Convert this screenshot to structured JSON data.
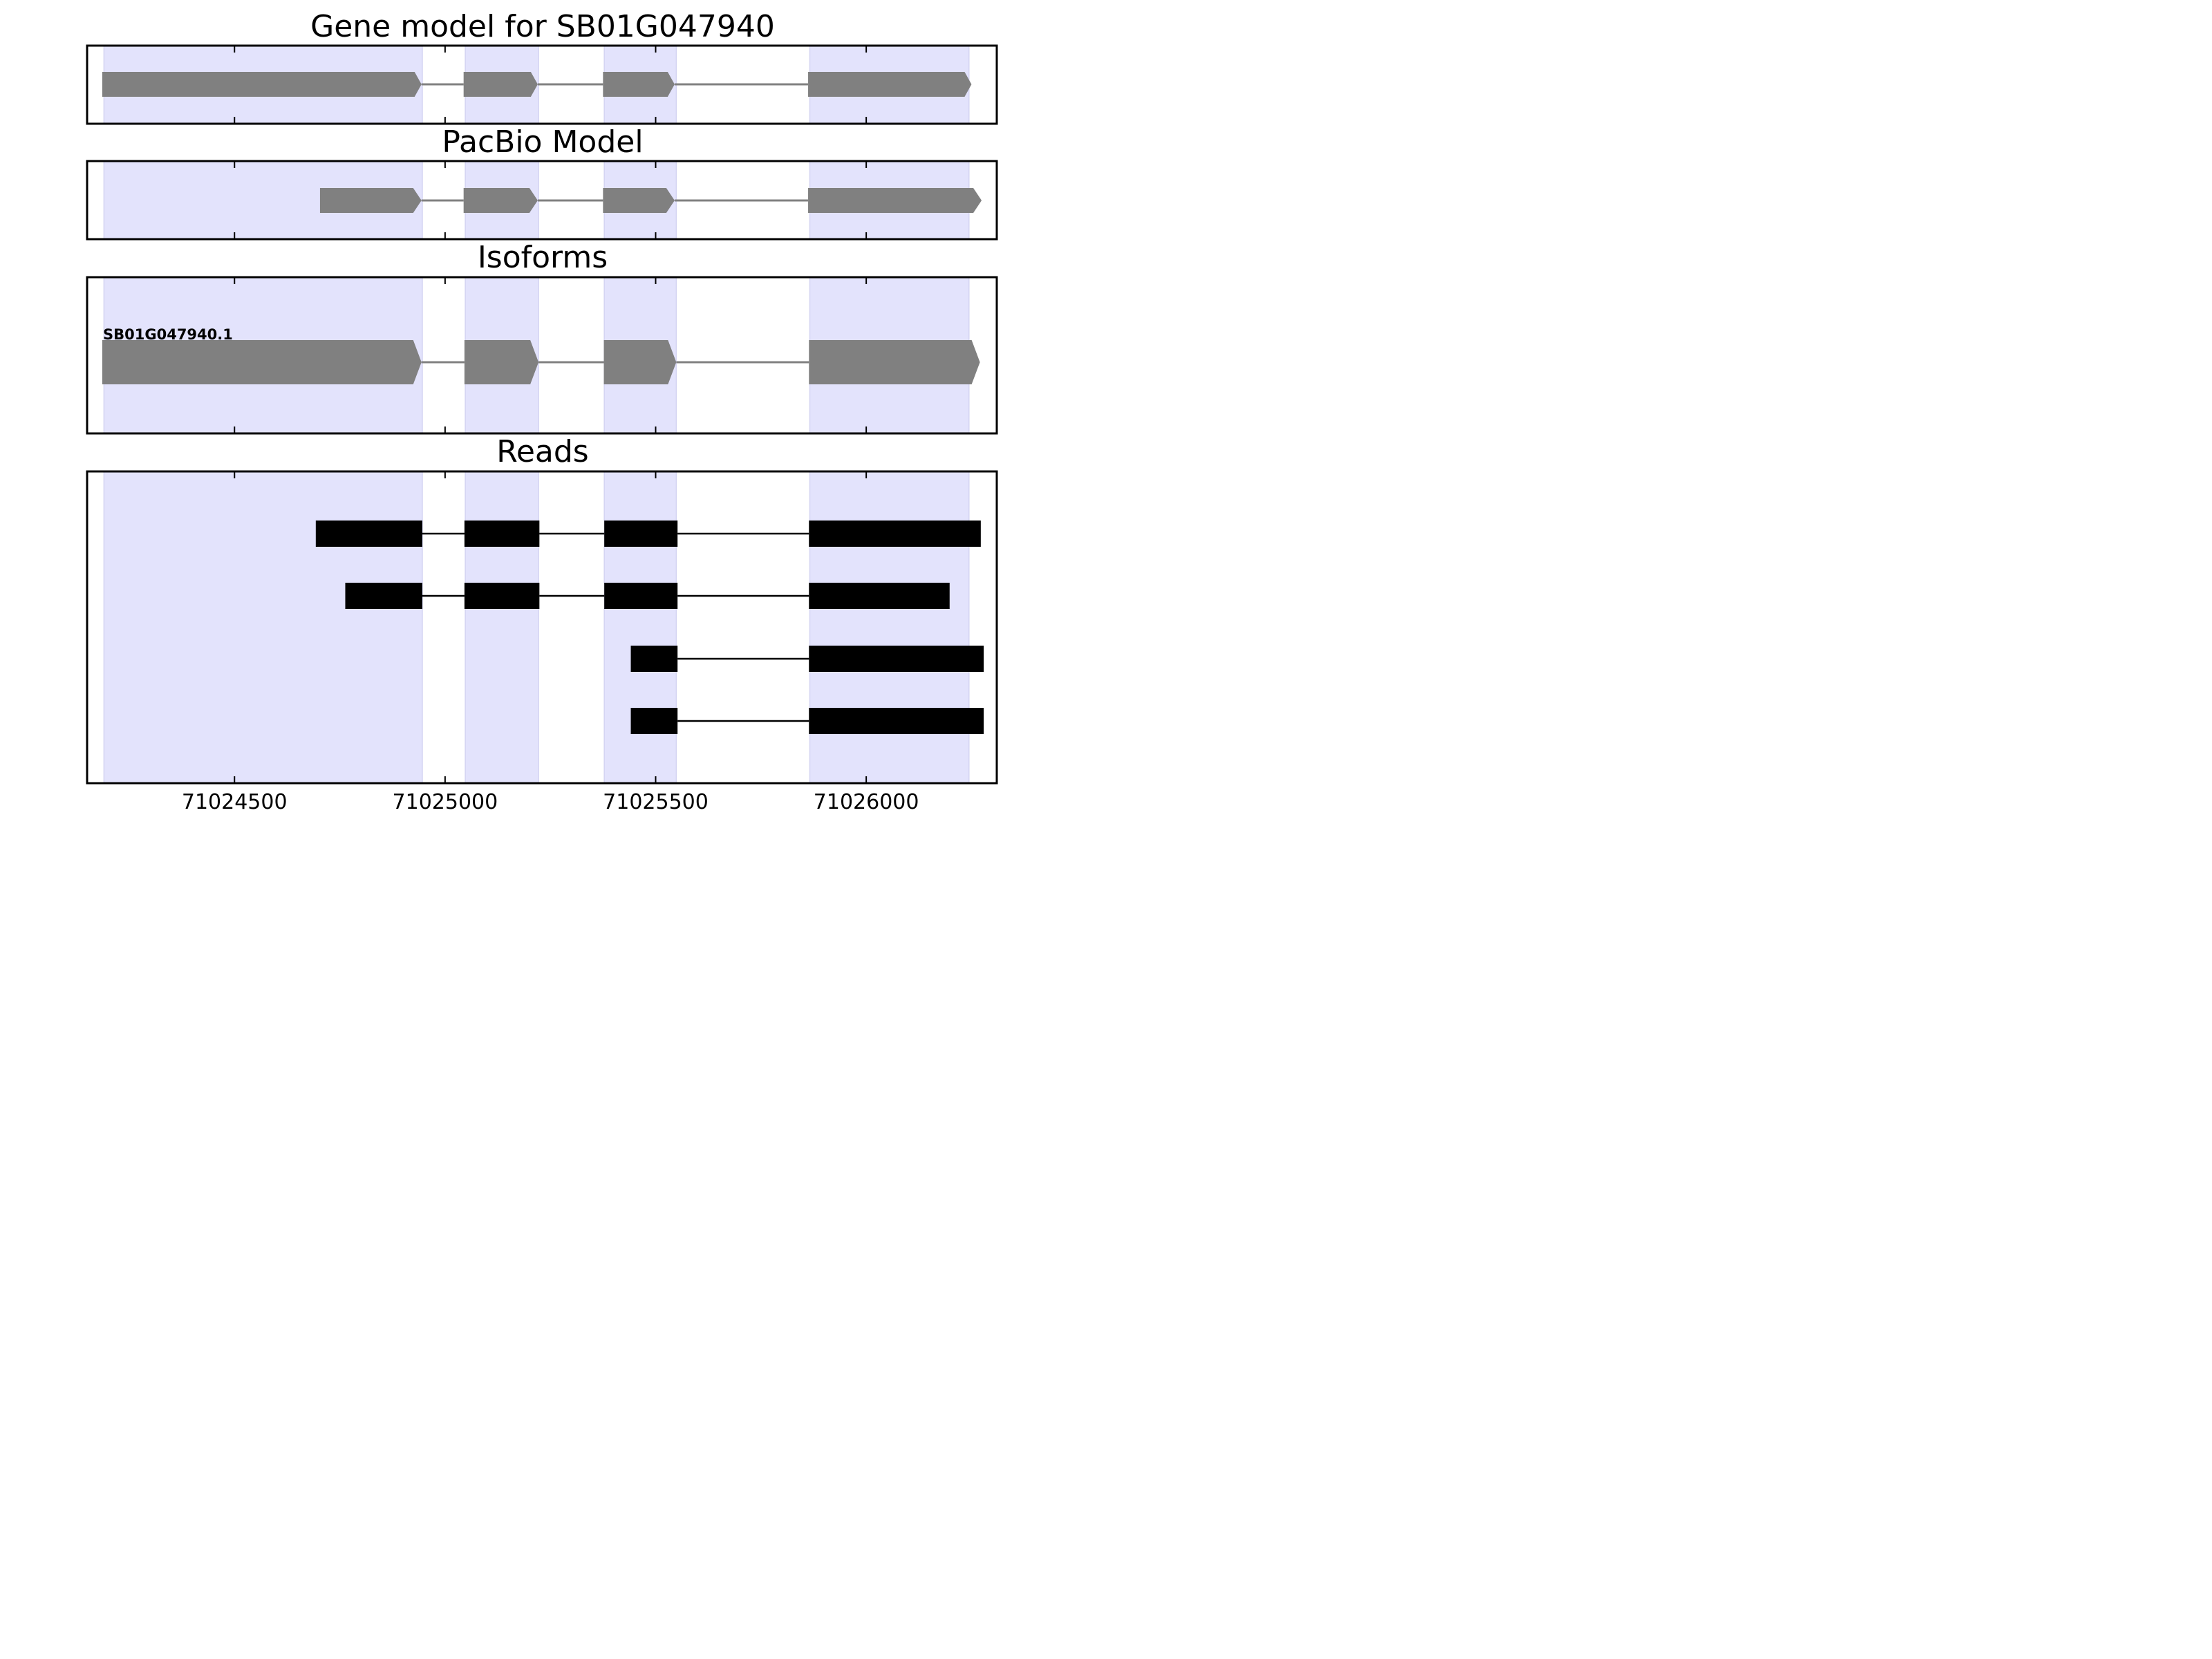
{
  "chart_data": {
    "type": "gene_model",
    "xlim": [
      71024150,
      71026310
    ],
    "xticks": [
      71024500,
      71025000,
      71025500,
      71026000
    ],
    "grid": false,
    "colors": {
      "exon_band": "#e3e3fc",
      "model": "#808080",
      "read": "#000000",
      "frame": "#000000"
    },
    "exon_bands": [
      [
        71024190,
        71024946
      ],
      [
        71025048,
        71025222
      ],
      [
        71025378,
        71025549
      ],
      [
        71025866,
        71026244
      ]
    ],
    "panels": [
      {
        "title": "Gene model for SB01G047940",
        "kind": "model",
        "labels": [],
        "rows": [
          {
            "exons": [
              [
                71024186,
                71024944
              ],
              [
                71025044,
                71025220
              ],
              [
                71025375,
                71025545
              ],
              [
                71025862,
                71026250
              ]
            ],
            "arrow": true
          }
        ]
      },
      {
        "title": "PacBio Model",
        "kind": "model",
        "labels": [],
        "rows": [
          {
            "exons": [
              [
                71024703,
                71024944
              ],
              [
                71025044,
                71025220
              ],
              [
                71025375,
                71025545
              ],
              [
                71025862,
                71026274
              ]
            ],
            "arrow": true
          }
        ]
      },
      {
        "title": "Isoforms",
        "kind": "isoform",
        "labels": [
          "SB01G047940.1"
        ],
        "rows": [
          {
            "name": "SB01G047940.1",
            "exons": [
              [
                71024186,
                71024944
              ],
              [
                71025046,
                71025222
              ],
              [
                71025377,
                71025549
              ],
              [
                71025864,
                71026270
              ]
            ],
            "arrow": true
          }
        ]
      },
      {
        "title": "Reads",
        "kind": "reads",
        "labels": [],
        "rows": [
          {
            "exons": [
              [
                71024693,
                71024946
              ],
              [
                71025046,
                71025224
              ],
              [
                71025378,
                71025552
              ],
              [
                71025864,
                71026272
              ]
            ]
          },
          {
            "exons": [
              [
                71024763,
                71024946
              ],
              [
                71025046,
                71025224
              ],
              [
                71025378,
                71025552
              ],
              [
                71025864,
                71026198
              ]
            ]
          },
          {
            "exons": [
              [
                71025441,
                71025552
              ],
              [
                71025864,
                71026279
              ]
            ]
          },
          {
            "exons": [
              [
                71025441,
                71025552
              ],
              [
                71025864,
                71026279
              ]
            ]
          }
        ]
      }
    ]
  }
}
